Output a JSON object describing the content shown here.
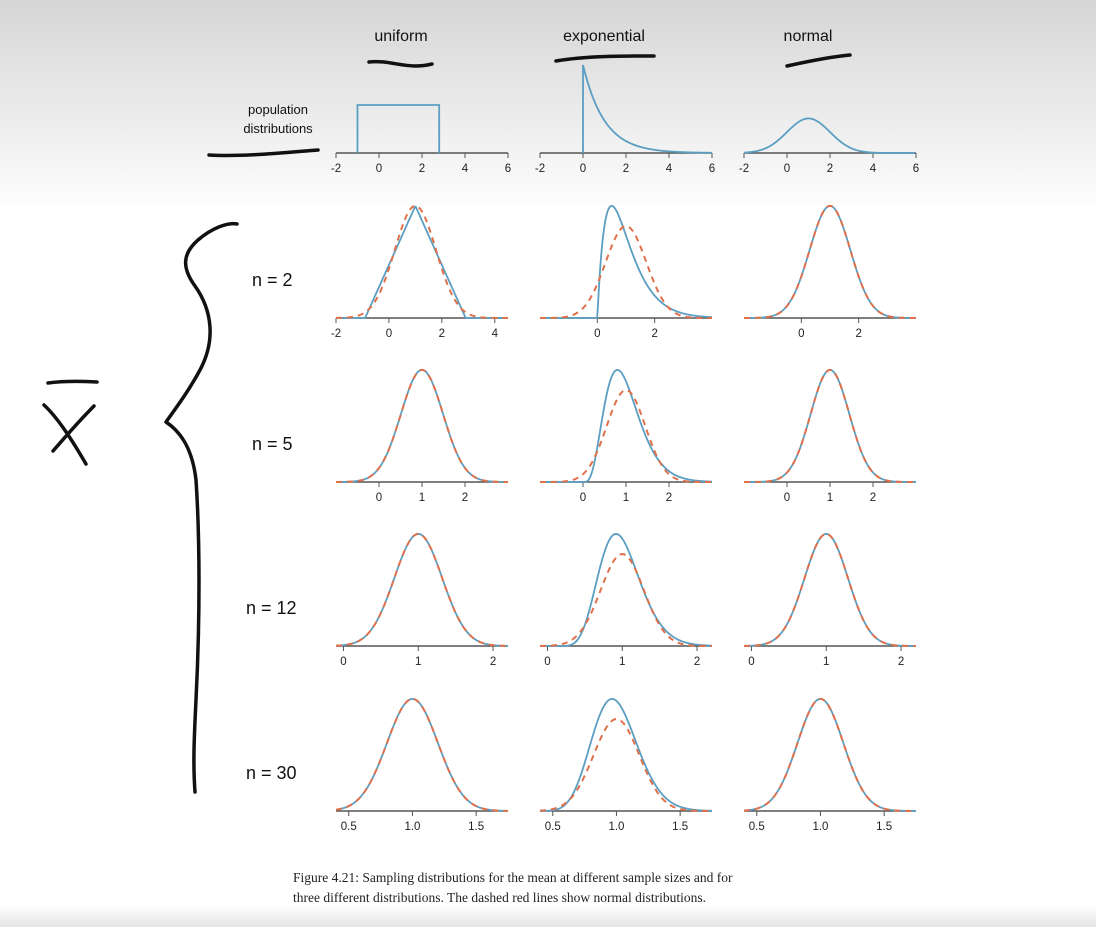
{
  "figure": {
    "column_titles": [
      "uniform",
      "exponential",
      "normal"
    ],
    "population_label_lines": [
      "population",
      "distributions"
    ],
    "row_labels": [
      "n = 2",
      "n = 5",
      "n = 12",
      "n = 30"
    ],
    "caption_lines": [
      "Figure 4.21: Sampling distributions for the mean at different sample sizes and for",
      "three different distributions. The dashed red lines show normal distributions."
    ],
    "colors": {
      "curve": "#5b9ec1",
      "normal_overlay": "#e0704a",
      "axis": "#555555",
      "ink": "#111111"
    },
    "handwriting": {
      "symbol": "x-bar",
      "brace": "left-curly-brace",
      "underlines": [
        "uniform",
        "exponential",
        "normal",
        "population distributions"
      ]
    }
  },
  "chart_data": [
    {
      "type": "line",
      "row": "population",
      "column": "uniform",
      "xlim": [
        -2,
        6
      ],
      "xticks": [
        "-2",
        "0",
        "2",
        "4",
        "6"
      ],
      "series": [
        {
          "values_x": [
            -1,
            -1,
            2.8,
            2.8
          ],
          "values_y": [
            0,
            1,
            1,
            0
          ]
        }
      ]
    },
    {
      "type": "line",
      "row": "population",
      "column": "exponential",
      "xlim": [
        -2,
        6
      ],
      "xticks": [
        "-2",
        "0",
        "2",
        "4",
        "6"
      ],
      "series": [
        {
          "rate": 1,
          "start": 0
        }
      ]
    },
    {
      "type": "line",
      "row": "population",
      "column": "normal",
      "xlim": [
        -2,
        6
      ],
      "xticks": [
        "-2",
        "0",
        "2",
        "4",
        "6"
      ],
      "series": [
        {
          "mean": 1,
          "sd": 1
        }
      ]
    },
    {
      "type": "line",
      "row": "n = 2",
      "column": "uniform",
      "xlim": [
        -2,
        4.5
      ],
      "xticks": [
        "-2",
        "0",
        "2",
        "4"
      ],
      "series": [
        {
          "shape": "triangle",
          "center": 1,
          "halfwidth": 1.9
        },
        {
          "shape": "normal",
          "mean": 1,
          "sd": 0.78
        }
      ]
    },
    {
      "type": "line",
      "row": "n = 2",
      "column": "exponential",
      "xlim": [
        -2,
        4
      ],
      "xticks": [
        "0",
        "2"
      ],
      "series": [
        {
          "shape": "gamma",
          "k": 2,
          "theta": 0.5
        },
        {
          "shape": "normal",
          "mean": 1,
          "sd": 0.71
        }
      ]
    },
    {
      "type": "line",
      "row": "n = 2",
      "column": "normal",
      "xlim": [
        -2,
        4
      ],
      "xticks": [
        "0",
        "2"
      ],
      "series": [
        {
          "shape": "normal",
          "mean": 1,
          "sd": 0.71
        },
        {
          "shape": "normal",
          "mean": 1,
          "sd": 0.71
        }
      ]
    },
    {
      "type": "line",
      "row": "n = 5",
      "column": "uniform",
      "xlim": [
        -1,
        3
      ],
      "xticks": [
        "0",
        "1",
        "2"
      ],
      "series": [
        {
          "shape": "normal",
          "mean": 1,
          "sd": 0.49
        },
        {
          "shape": "normal",
          "mean": 1,
          "sd": 0.49
        }
      ]
    },
    {
      "type": "line",
      "row": "n = 5",
      "column": "exponential",
      "xlim": [
        -1,
        3
      ],
      "xticks": [
        "0",
        "1",
        "2"
      ],
      "series": [
        {
          "shape": "gamma",
          "k": 5,
          "theta": 0.2
        },
        {
          "shape": "normal",
          "mean": 1,
          "sd": 0.45
        }
      ]
    },
    {
      "type": "line",
      "row": "n = 5",
      "column": "normal",
      "xlim": [
        -1,
        3
      ],
      "xticks": [
        "0",
        "1",
        "2"
      ],
      "series": [
        {
          "shape": "normal",
          "mean": 1,
          "sd": 0.45
        },
        {
          "shape": "normal",
          "mean": 1,
          "sd": 0.45
        }
      ]
    },
    {
      "type": "line",
      "row": "n = 12",
      "column": "uniform",
      "xlim": [
        -0.1,
        2.2
      ],
      "xticks": [
        "0",
        "1",
        "2"
      ],
      "series": [
        {
          "shape": "normal",
          "mean": 1,
          "sd": 0.32
        },
        {
          "shape": "normal",
          "mean": 1,
          "sd": 0.32
        }
      ]
    },
    {
      "type": "line",
      "row": "n = 12",
      "column": "exponential",
      "xlim": [
        -0.1,
        2.2
      ],
      "xticks": [
        "0",
        "1",
        "2"
      ],
      "series": [
        {
          "shape": "gamma",
          "k": 12,
          "theta": 0.0833
        },
        {
          "shape": "normal",
          "mean": 1,
          "sd": 0.29
        }
      ]
    },
    {
      "type": "line",
      "row": "n = 12",
      "column": "normal",
      "xlim": [
        -0.1,
        2.2
      ],
      "xticks": [
        "0",
        "1",
        "2"
      ],
      "series": [
        {
          "shape": "normal",
          "mean": 1,
          "sd": 0.29
        },
        {
          "shape": "normal",
          "mean": 1,
          "sd": 0.29
        }
      ]
    },
    {
      "type": "line",
      "row": "n = 30",
      "column": "uniform",
      "xlim": [
        0.4,
        1.75
      ],
      "xticks": [
        "0.5",
        "1.0",
        "1.5"
      ],
      "series": [
        {
          "shape": "normal",
          "mean": 1,
          "sd": 0.2
        },
        {
          "shape": "normal",
          "mean": 1,
          "sd": 0.2
        }
      ]
    },
    {
      "type": "line",
      "row": "n = 30",
      "column": "exponential",
      "xlim": [
        0.4,
        1.75
      ],
      "xticks": [
        "0.5",
        "1.0",
        "1.5"
      ],
      "series": [
        {
          "shape": "gamma",
          "k": 30,
          "theta": 0.0333
        },
        {
          "shape": "normal",
          "mean": 1,
          "sd": 0.18
        }
      ]
    },
    {
      "type": "line",
      "row": "n = 30",
      "column": "normal",
      "xlim": [
        0.4,
        1.75
      ],
      "xticks": [
        "0.5",
        "1.0",
        "1.5"
      ],
      "series": [
        {
          "shape": "normal",
          "mean": 1,
          "sd": 0.18
        },
        {
          "shape": "normal",
          "mean": 1,
          "sd": 0.18
        }
      ]
    }
  ]
}
